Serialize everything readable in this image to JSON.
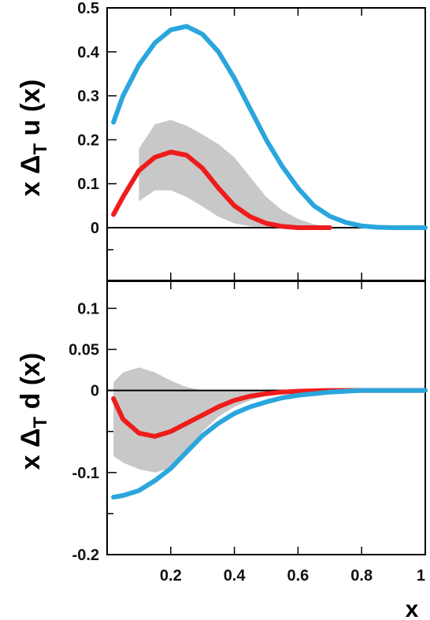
{
  "chart_data": [
    {
      "type": "line",
      "ylabel": {
        "pre": "x Δ",
        "sub": "T",
        "post": " u (x)"
      },
      "xlim": [
        0,
        1
      ],
      "ylim": [
        -0.12,
        0.5
      ],
      "ytick_labels": [
        "0.5",
        "0.4",
        "0.3",
        "0.2",
        "0.1",
        "0"
      ],
      "yticks": [
        0.5,
        0.4,
        0.3,
        0.2,
        0.1,
        0
      ],
      "minor_yticks": [
        -0.05
      ],
      "grid": false,
      "colors": {
        "blue": "#2aa6dd",
        "red": "#ee1c1c",
        "band": "#c8c8c8"
      },
      "series": [
        {
          "color": "blue",
          "x": [
            0.02,
            0.05,
            0.1,
            0.15,
            0.2,
            0.25,
            0.3,
            0.35,
            0.4,
            0.45,
            0.5,
            0.55,
            0.6,
            0.65,
            0.7,
            0.75,
            0.8,
            0.85,
            0.9,
            0.95,
            1.0
          ],
          "y": [
            0.24,
            0.3,
            0.37,
            0.42,
            0.45,
            0.458,
            0.44,
            0.4,
            0.34,
            0.27,
            0.2,
            0.14,
            0.09,
            0.05,
            0.026,
            0.012,
            0.004,
            0.001,
            0,
            0,
            0
          ]
        },
        {
          "color": "red",
          "x": [
            0.02,
            0.05,
            0.1,
            0.15,
            0.2,
            0.25,
            0.3,
            0.35,
            0.4,
            0.45,
            0.5,
            0.55,
            0.6,
            0.65,
            0.7
          ],
          "y": [
            0.03,
            0.07,
            0.13,
            0.16,
            0.172,
            0.165,
            0.135,
            0.09,
            0.05,
            0.025,
            0.01,
            0.003,
            0,
            0,
            0
          ]
        }
      ],
      "band": {
        "x": [
          0.1,
          0.15,
          0.2,
          0.25,
          0.3,
          0.35,
          0.4,
          0.45,
          0.5,
          0.55,
          0.6,
          0.65,
          0.7,
          0.75
        ],
        "upper": [
          0.18,
          0.235,
          0.245,
          0.232,
          0.212,
          0.19,
          0.16,
          0.115,
          0.07,
          0.04,
          0.02,
          0.008,
          0.002,
          0
        ],
        "lower": [
          0.06,
          0.085,
          0.085,
          0.07,
          0.048,
          0.025,
          0.01,
          0.003,
          0,
          0,
          0,
          0,
          0,
          0
        ]
      }
    },
    {
      "type": "line",
      "ylabel": {
        "pre": "x Δ",
        "sub": "T",
        "post": " d (x)"
      },
      "xlabel": "x",
      "xlim": [
        0,
        1
      ],
      "ylim": [
        -0.2,
        0.133
      ],
      "xtick_labels": [
        "0.2",
        "0.4",
        "0.6",
        "0.8",
        "1"
      ],
      "xticks": [
        0.2,
        0.4,
        0.6,
        0.8,
        1
      ],
      "ytick_labels": [
        "0.1",
        "0.05",
        "0",
        "-0.1",
        "-0.2"
      ],
      "yticks": [
        0.1,
        0.05,
        0,
        -0.1,
        -0.2
      ],
      "minor_yticks": [
        -0.05,
        -0.15
      ],
      "grid": false,
      "series": [
        {
          "color": "red",
          "x": [
            0.02,
            0.05,
            0.1,
            0.15,
            0.2,
            0.25,
            0.3,
            0.35,
            0.4,
            0.45,
            0.5,
            0.55,
            0.6,
            0.7,
            0.8,
            1.0
          ],
          "y": [
            -0.01,
            -0.035,
            -0.052,
            -0.056,
            -0.05,
            -0.04,
            -0.03,
            -0.02,
            -0.012,
            -0.007,
            -0.004,
            -0.002,
            -0.001,
            0,
            0,
            0
          ]
        },
        {
          "color": "blue",
          "x": [
            0.02,
            0.05,
            0.1,
            0.15,
            0.2,
            0.25,
            0.3,
            0.35,
            0.4,
            0.45,
            0.5,
            0.55,
            0.6,
            0.65,
            0.7,
            0.75,
            0.8,
            0.9,
            1.0
          ],
          "y": [
            -0.13,
            -0.128,
            -0.122,
            -0.11,
            -0.095,
            -0.075,
            -0.055,
            -0.04,
            -0.028,
            -0.02,
            -0.014,
            -0.009,
            -0.006,
            -0.004,
            -0.002,
            -0.001,
            0,
            0,
            0
          ]
        }
      ],
      "band": {
        "x": [
          0.02,
          0.05,
          0.1,
          0.15,
          0.2,
          0.25,
          0.3,
          0.35,
          0.4,
          0.45,
          0.5,
          0.55,
          0.6
        ],
        "upper": [
          0.01,
          0.022,
          0.028,
          0.022,
          0.012,
          0.004,
          0,
          0,
          0,
          0,
          0,
          0,
          0
        ],
        "lower": [
          -0.08,
          -0.088,
          -0.096,
          -0.1,
          -0.095,
          -0.075,
          -0.05,
          -0.032,
          -0.02,
          -0.012,
          -0.006,
          -0.003,
          0
        ]
      }
    }
  ]
}
